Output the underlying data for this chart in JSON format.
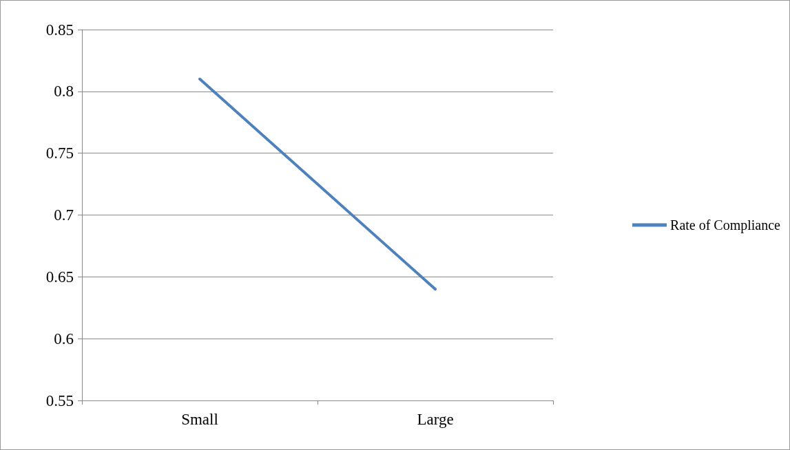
{
  "chart_data": {
    "type": "line",
    "categories": [
      "Small",
      "Large"
    ],
    "series": [
      {
        "name": "Rate of Compliance",
        "color": "#4f81bd",
        "values": [
          0.81,
          0.64
        ]
      }
    ],
    "ylim": [
      0.55,
      0.85
    ],
    "yticks": [
      0.55,
      0.6,
      0.65,
      0.7,
      0.75,
      0.8,
      0.85
    ],
    "grid": "y",
    "legend": "right",
    "marker": "none",
    "line_style": "solid"
  }
}
